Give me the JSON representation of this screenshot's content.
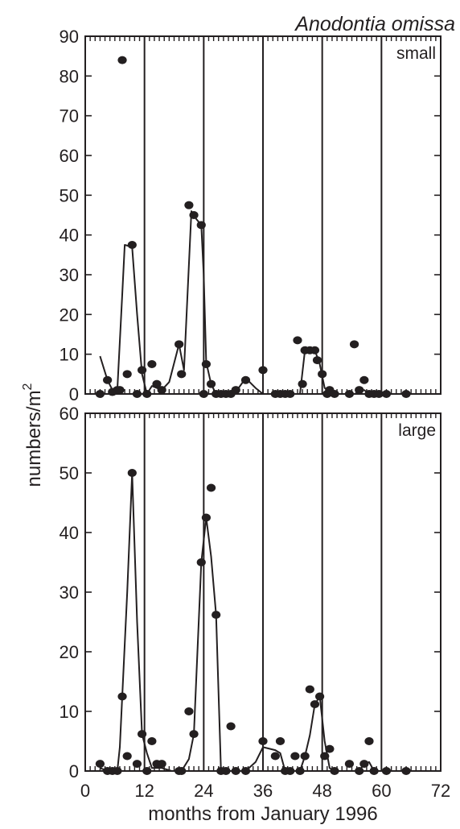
{
  "chart_data": {
    "type": "scatter",
    "title": "Anodontia omissa",
    "xlabel": "months from January 1996",
    "ylabel": "numbers/m",
    "ylabel_superscript": "2",
    "xlim": [
      0,
      72
    ],
    "xticks": [
      "0",
      "12",
      "24",
      "36",
      "48",
      "60",
      "72"
    ],
    "vertical_lines_x": [
      12,
      24,
      36,
      48,
      60
    ],
    "panels": [
      {
        "name": "small",
        "ylim": [
          0,
          90
        ],
        "yticks": [
          "0",
          "10",
          "20",
          "30",
          "40",
          "50",
          "60",
          "70",
          "80",
          "90"
        ],
        "points": [
          [
            3,
            0
          ],
          [
            4.5,
            3.5
          ],
          [
            5.5,
            0.5
          ],
          [
            6.5,
            1
          ],
          [
            7,
            1
          ],
          [
            7.5,
            84
          ],
          [
            8.5,
            5
          ],
          [
            9.5,
            37.5
          ],
          [
            10.5,
            0
          ],
          [
            11.5,
            6
          ],
          [
            12.5,
            0
          ],
          [
            13.5,
            7.5
          ],
          [
            14.5,
            2.5
          ],
          [
            15.5,
            1
          ],
          [
            19,
            12.5
          ],
          [
            19.5,
            5
          ],
          [
            21,
            47.5
          ],
          [
            22,
            45
          ],
          [
            23.5,
            42.5
          ],
          [
            24,
            0
          ],
          [
            24.5,
            7.5
          ],
          [
            25.5,
            2.5
          ],
          [
            26.5,
            0
          ],
          [
            27.5,
            0
          ],
          [
            28.5,
            0
          ],
          [
            29.5,
            0
          ],
          [
            30.5,
            1
          ],
          [
            32.5,
            3.5
          ],
          [
            36,
            6
          ],
          [
            38.5,
            0
          ],
          [
            39.5,
            0
          ],
          [
            40.5,
            0
          ],
          [
            41.5,
            0
          ],
          [
            43,
            13.5
          ],
          [
            44,
            2.5
          ],
          [
            44.5,
            11
          ],
          [
            45.5,
            11
          ],
          [
            46.5,
            11
          ],
          [
            47,
            8.5
          ],
          [
            48,
            5
          ],
          [
            49,
            0
          ],
          [
            49.5,
            1
          ],
          [
            50.5,
            0
          ],
          [
            53.5,
            0
          ],
          [
            54.5,
            12.5
          ],
          [
            55.5,
            1
          ],
          [
            56.5,
            3.5
          ],
          [
            57.5,
            0
          ],
          [
            58.5,
            0
          ],
          [
            59.5,
            0
          ],
          [
            61,
            0
          ],
          [
            65,
            0
          ]
        ],
        "line": [
          [
            3,
            9.5
          ],
          [
            4.5,
            3.5
          ],
          [
            5.5,
            1
          ],
          [
            6.5,
            1
          ],
          [
            7.5,
            25
          ],
          [
            8,
            37.5
          ],
          [
            9.5,
            37
          ],
          [
            10.5,
            20
          ],
          [
            11.5,
            5
          ],
          [
            12.5,
            0
          ],
          [
            13.5,
            2
          ],
          [
            14.5,
            1.5
          ],
          [
            15.5,
            1
          ],
          [
            17,
            3
          ],
          [
            19,
            12.5
          ],
          [
            20,
            6
          ],
          [
            21.5,
            46
          ],
          [
            22.5,
            44
          ],
          [
            23.5,
            42.5
          ],
          [
            24,
            30
          ],
          [
            24.5,
            8
          ],
          [
            25.5,
            2.5
          ],
          [
            26.5,
            0
          ],
          [
            28.5,
            0
          ],
          [
            30.5,
            0.5
          ],
          [
            32.5,
            4
          ],
          [
            34.5,
            1.5
          ],
          [
            36,
            0
          ],
          [
            38.5,
            0
          ],
          [
            41.5,
            0
          ],
          [
            43.5,
            0
          ],
          [
            44.5,
            11
          ],
          [
            45.5,
            11
          ],
          [
            46.5,
            11
          ],
          [
            47.5,
            7.5
          ],
          [
            48.5,
            1.5
          ],
          [
            49.5,
            0.5
          ],
          [
            51.5,
            0
          ],
          [
            54.5,
            0
          ],
          [
            55.5,
            0.5
          ],
          [
            56.5,
            1
          ],
          [
            57.5,
            0
          ],
          [
            60,
            0
          ]
        ]
      },
      {
        "name": "large",
        "ylim": [
          0,
          60
        ],
        "yticks": [
          "0",
          "10",
          "20",
          "30",
          "40",
          "50",
          "60"
        ],
        "points": [
          [
            3,
            1.2
          ],
          [
            4.5,
            0
          ],
          [
            5.5,
            0
          ],
          [
            6.5,
            0
          ],
          [
            7.5,
            12.5
          ],
          [
            8.5,
            2.5
          ],
          [
            9.5,
            50
          ],
          [
            10.5,
            1.2
          ],
          [
            11.5,
            6.2
          ],
          [
            12.5,
            0
          ],
          [
            13.5,
            5
          ],
          [
            14.5,
            1.2
          ],
          [
            15.5,
            1.2
          ],
          [
            19,
            0
          ],
          [
            19.5,
            0
          ],
          [
            21,
            10
          ],
          [
            22,
            6.2
          ],
          [
            23.5,
            35
          ],
          [
            24.5,
            42.5
          ],
          [
            25.5,
            47.5
          ],
          [
            26.5,
            26.2
          ],
          [
            27.5,
            0
          ],
          [
            28.5,
            0
          ],
          [
            29.5,
            7.5
          ],
          [
            30.5,
            0
          ],
          [
            32.5,
            0
          ],
          [
            36,
            5
          ],
          [
            38.5,
            2.5
          ],
          [
            39.5,
            5
          ],
          [
            40.5,
            0
          ],
          [
            41.5,
            0
          ],
          [
            42.5,
            2.5
          ],
          [
            43.5,
            0
          ],
          [
            44.5,
            2.5
          ],
          [
            45.5,
            13.7
          ],
          [
            46.5,
            11.2
          ],
          [
            47.5,
            12.5
          ],
          [
            48.5,
            2.5
          ],
          [
            49.5,
            3.7
          ],
          [
            50.5,
            0
          ],
          [
            53.5,
            1.2
          ],
          [
            55.5,
            0
          ],
          [
            56.5,
            1.2
          ],
          [
            57.5,
            5
          ],
          [
            58.5,
            0
          ],
          [
            61,
            0
          ],
          [
            65,
            0
          ]
        ],
        "line": [
          [
            3,
            0.5
          ],
          [
            4.5,
            0
          ],
          [
            6.5,
            0
          ],
          [
            7,
            4
          ],
          [
            7.5,
            12.5
          ],
          [
            8.5,
            30
          ],
          [
            9.5,
            50
          ],
          [
            10.5,
            25
          ],
          [
            11.5,
            6.2
          ],
          [
            12.5,
            3
          ],
          [
            13.5,
            0.5
          ],
          [
            15.5,
            0.5
          ],
          [
            17.5,
            0
          ],
          [
            19.5,
            0
          ],
          [
            21,
            2
          ],
          [
            22,
            6.2
          ],
          [
            23.5,
            35
          ],
          [
            24.5,
            42.5
          ],
          [
            25.5,
            36
          ],
          [
            26.5,
            26.2
          ],
          [
            27.5,
            0
          ],
          [
            29.5,
            0
          ],
          [
            32.5,
            0
          ],
          [
            34.5,
            1.5
          ],
          [
            36,
            4
          ],
          [
            38.5,
            3.5
          ],
          [
            39.5,
            3
          ],
          [
            40.5,
            0
          ],
          [
            43.5,
            0
          ],
          [
            44.5,
            2.5
          ],
          [
            45.5,
            6
          ],
          [
            46.5,
            11.2
          ],
          [
            47.5,
            12.5
          ],
          [
            48.5,
            5
          ],
          [
            49.5,
            0.5
          ],
          [
            50.5,
            0
          ],
          [
            53.5,
            0
          ],
          [
            55.5,
            0
          ],
          [
            56.5,
            1.2
          ],
          [
            57.5,
            1.5
          ],
          [
            58.5,
            0
          ],
          [
            61,
            0
          ]
        ]
      }
    ]
  }
}
